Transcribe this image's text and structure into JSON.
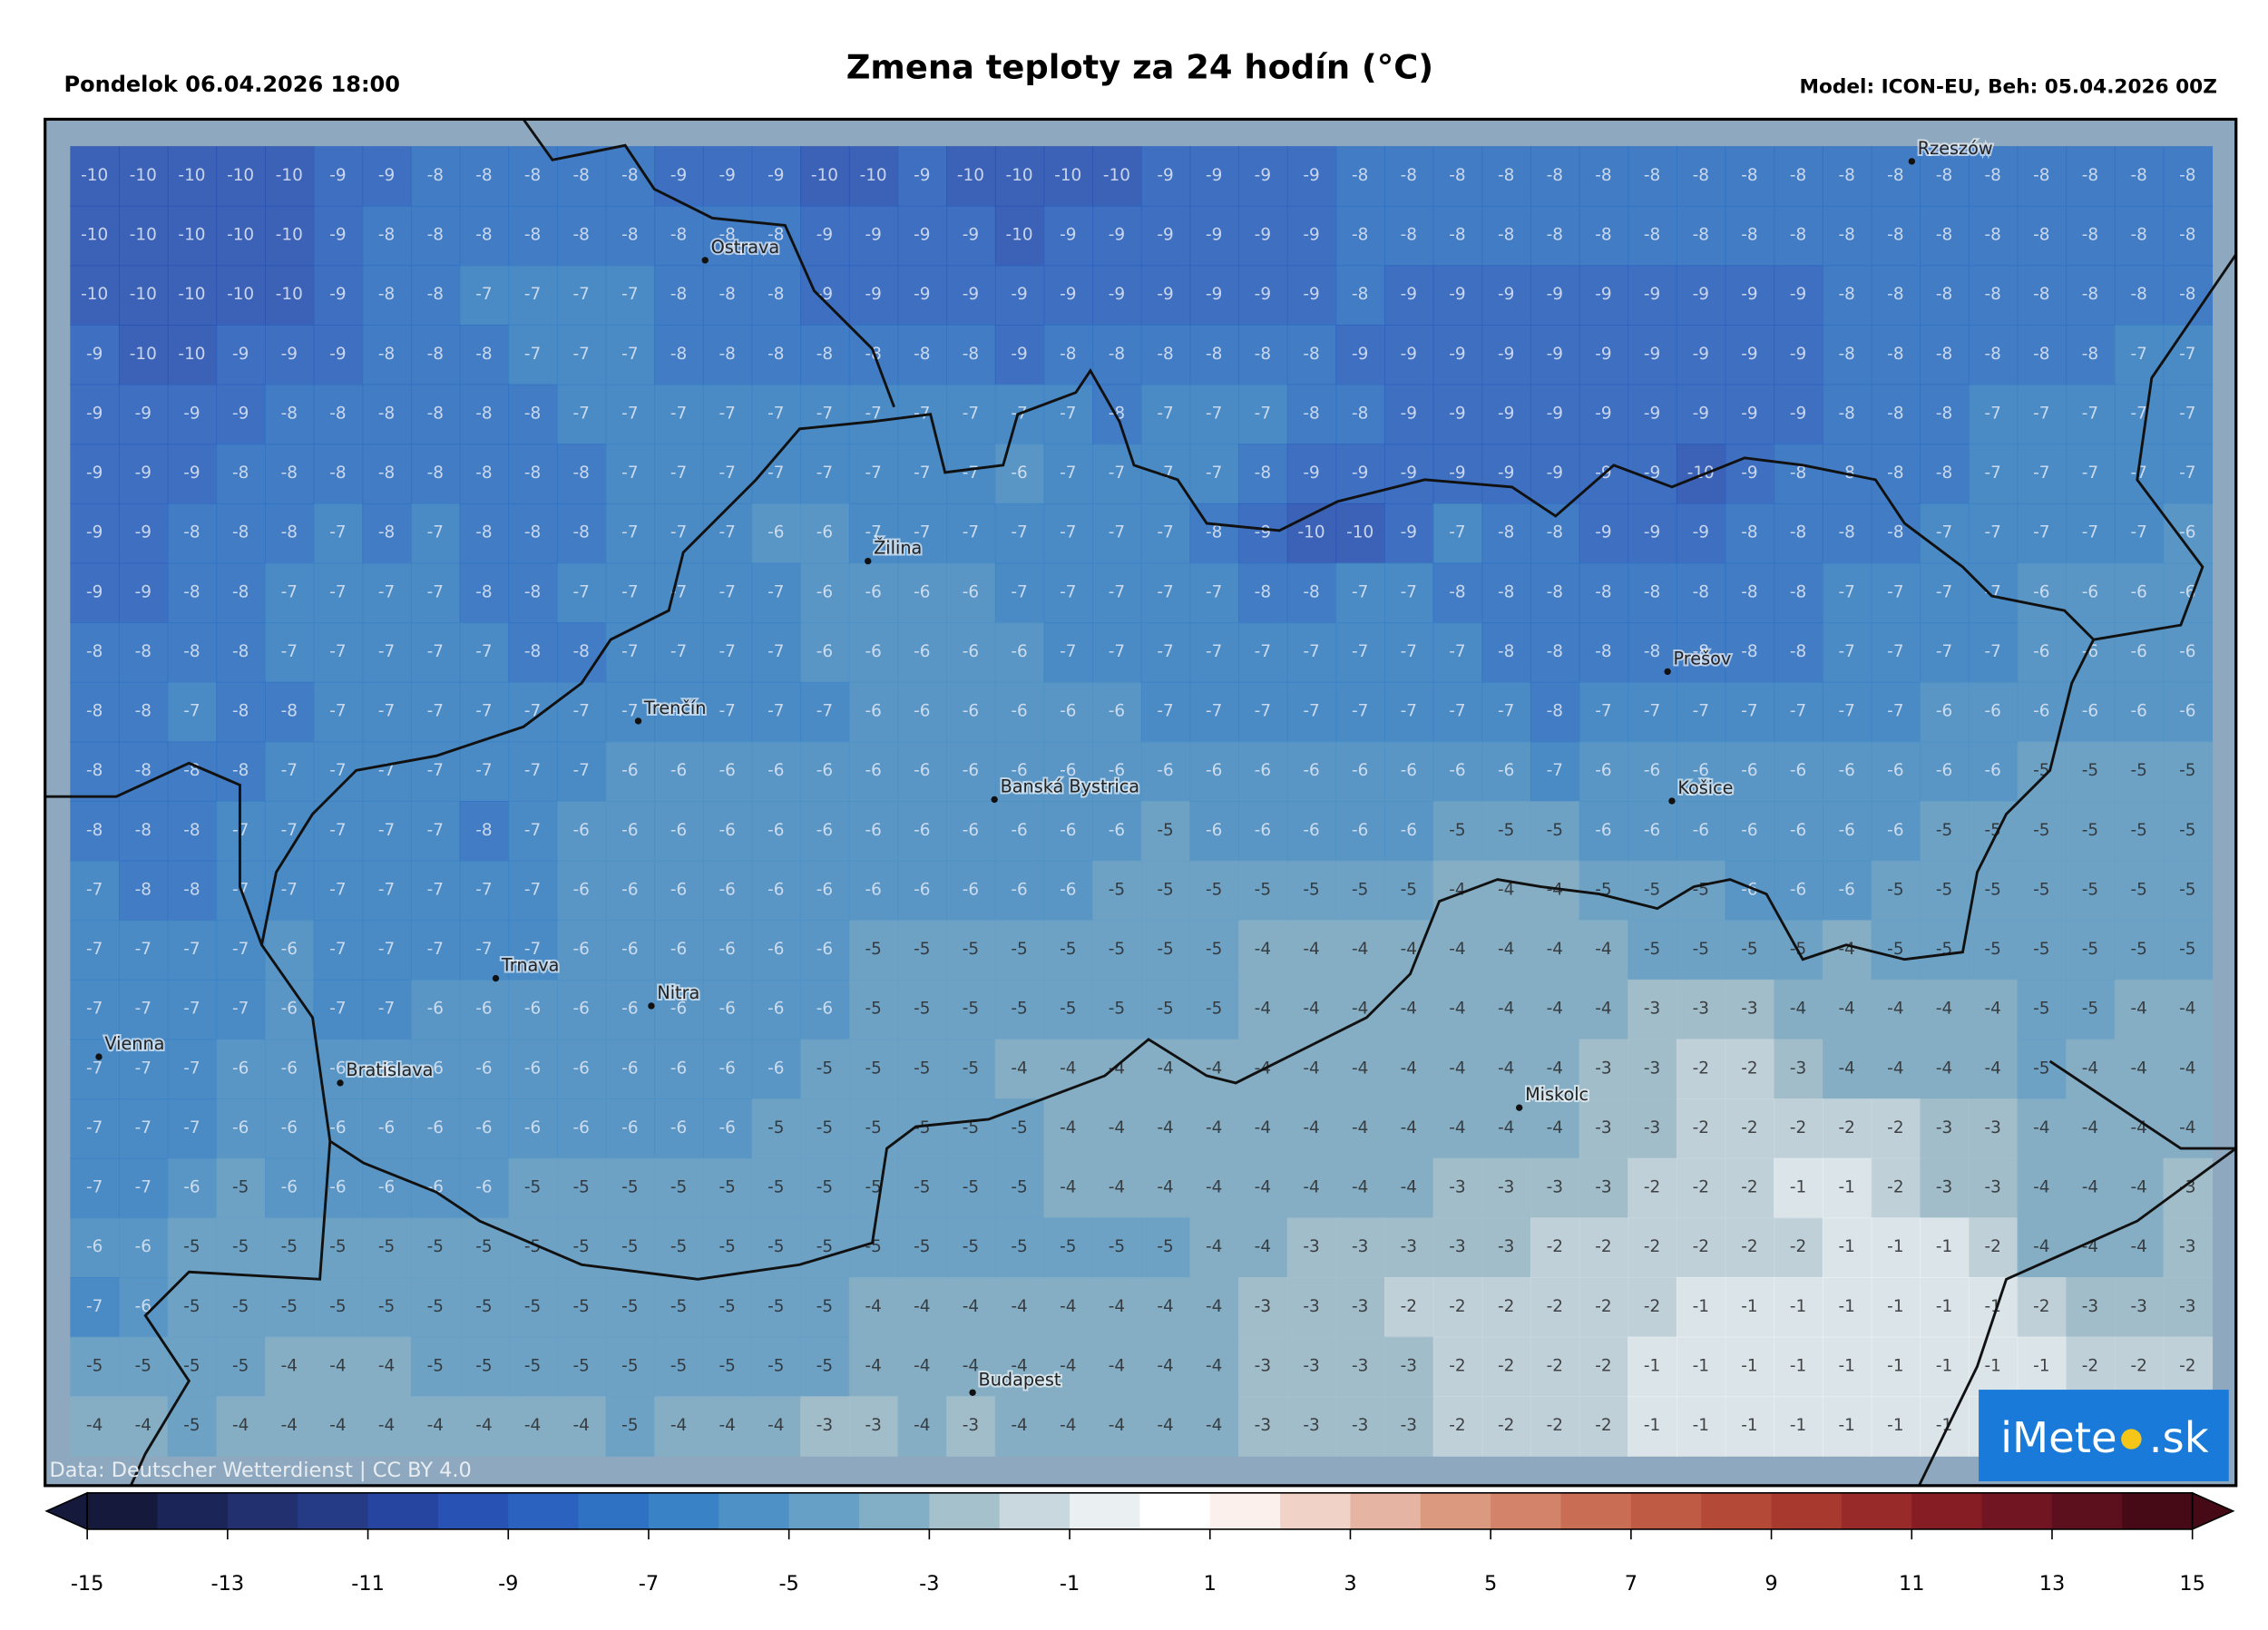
{
  "header": {
    "left": "Pondelok 06.04.2026 18:00",
    "title": "Zmena teploty za 24 hodín (°C)",
    "right": "Model: ICON-EU, Beh: 05.04.2026 00Z"
  },
  "map": {
    "cities": [
      "Rzeszów",
      "Ostrava",
      "Žilina",
      "Prešov",
      "Trenčín",
      "Košice",
      "Banská Bystrica",
      "Trnava",
      "Nitra",
      "Vienna",
      "Bratislava",
      "Miskolc",
      "Budapest"
    ],
    "grid": [
      [
        -10,
        -10,
        -10,
        -10,
        -10,
        -9,
        -9,
        -8,
        -8,
        -8,
        -8,
        -8,
        -9,
        -9,
        -9,
        -10,
        -10,
        -9,
        -10,
        -10,
        -10,
        -10,
        -9,
        -9,
        -9,
        -9,
        -8,
        -8,
        -8,
        -8,
        -8,
        -8,
        -8,
        -8,
        -8,
        -8,
        -8,
        -8,
        -8,
        -8,
        -8,
        -8,
        -8,
        -8
      ],
      [
        -10,
        -10,
        -10,
        -10,
        -10,
        -9,
        -8,
        -8,
        -8,
        -8,
        -8,
        -8,
        -8,
        -8,
        -8,
        -9,
        -9,
        -9,
        -9,
        -10,
        -9,
        -9,
        -9,
        -9,
        -9,
        -9,
        -8,
        -8,
        -8,
        -8,
        -8,
        -8,
        -8,
        -8,
        -8,
        -8,
        -8,
        -8,
        -8,
        -8,
        -8,
        -8,
        -8,
        -8
      ],
      [
        -10,
        -10,
        -10,
        -10,
        -10,
        -9,
        -8,
        -8,
        -7,
        -7,
        -7,
        -7,
        -8,
        -8,
        -8,
        -9,
        -9,
        -9,
        -9,
        -9,
        -9,
        -9,
        -9,
        -9,
        -9,
        -9,
        -8,
        -9,
        -9,
        -9,
        -9,
        -9,
        -9,
        -9,
        -9,
        -9,
        -8,
        -8,
        -8,
        -8,
        -8,
        -8,
        -8,
        -8
      ],
      [
        -9,
        -10,
        -10,
        -9,
        -9,
        -9,
        -8,
        -8,
        -8,
        -7,
        -7,
        -7,
        -8,
        -8,
        -8,
        -8,
        -8,
        -8,
        -8,
        -9,
        -8,
        -8,
        -8,
        -8,
        -8,
        -8,
        -9,
        -9,
        -9,
        -9,
        -9,
        -9,
        -9,
        -9,
        -9,
        -9,
        -8,
        -8,
        -8,
        -8,
        -8,
        -8,
        -7,
        -7
      ],
      [
        -9,
        -9,
        -9,
        -9,
        -8,
        -8,
        -8,
        -8,
        -8,
        -8,
        -7,
        -7,
        -7,
        -7,
        -7,
        -7,
        -7,
        -7,
        -7,
        -7,
        -7,
        -8,
        -7,
        -7,
        -7,
        -8,
        -8,
        -9,
        -9,
        -9,
        -9,
        -9,
        -9,
        -9,
        -9,
        -9,
        -8,
        -8,
        -8,
        -7,
        -7,
        -7,
        -7,
        -7
      ],
      [
        -9,
        -9,
        -9,
        -8,
        -8,
        -8,
        -8,
        -8,
        -8,
        -8,
        -8,
        -7,
        -7,
        -7,
        -7,
        -7,
        -7,
        -7,
        -7,
        -6,
        -7,
        -7,
        -7,
        -7,
        -8,
        -9,
        -9,
        -9,
        -9,
        -9,
        -9,
        -9,
        -9,
        -10,
        -9,
        -8,
        -8,
        -8,
        -8,
        -7,
        -7,
        -7,
        -7,
        -7
      ],
      [
        -9,
        -9,
        -8,
        -8,
        -8,
        -7,
        -8,
        -7,
        -8,
        -8,
        -8,
        -7,
        -7,
        -7,
        -6,
        -6,
        -7,
        -7,
        -7,
        -7,
        -7,
        -7,
        -7,
        -8,
        -9,
        -10,
        -10,
        -9,
        -7,
        -8,
        -8,
        -9,
        -9,
        -9,
        -8,
        -8,
        -8,
        -8,
        -7,
        -7,
        -7,
        -7,
        -7,
        -6
      ],
      [
        -9,
        -9,
        -8,
        -8,
        -7,
        -7,
        -7,
        -7,
        -8,
        -8,
        -7,
        -7,
        -7,
        -7,
        -7,
        -6,
        -6,
        -6,
        -6,
        -7,
        -7,
        -7,
        -7,
        -7,
        -8,
        -8,
        -7,
        -7,
        -8,
        -8,
        -8,
        -8,
        -8,
        -8,
        -8,
        -8,
        -7,
        -7,
        -7,
        -7,
        -6,
        -6,
        -6,
        -6
      ],
      [
        -8,
        -8,
        -8,
        -8,
        -7,
        -7,
        -7,
        -7,
        -7,
        -8,
        -8,
        -7,
        -7,
        -7,
        -7,
        -6,
        -6,
        -6,
        -6,
        -6,
        -7,
        -7,
        -7,
        -7,
        -7,
        -7,
        -7,
        -7,
        -7,
        -8,
        -8,
        -8,
        -8,
        -8,
        -8,
        -8,
        -7,
        -7,
        -7,
        -7,
        -6,
        -6,
        -6,
        -6
      ],
      [
        -8,
        -8,
        -7,
        -8,
        -8,
        -7,
        -7,
        -7,
        -7,
        -7,
        -7,
        -7,
        -7,
        -7,
        -7,
        -7,
        -6,
        -6,
        -6,
        -6,
        -6,
        -6,
        -7,
        -7,
        -7,
        -7,
        -7,
        -7,
        -7,
        -7,
        -8,
        -7,
        -7,
        -7,
        -7,
        -7,
        -7,
        -7,
        -6,
        -6,
        -6,
        -6,
        -6,
        -6
      ],
      [
        -8,
        -8,
        -8,
        -8,
        -7,
        -7,
        -7,
        -7,
        -7,
        -7,
        -7,
        -6,
        -6,
        -6,
        -6,
        -6,
        -6,
        -6,
        -6,
        -6,
        -6,
        -6,
        -6,
        -6,
        -6,
        -6,
        -6,
        -6,
        -6,
        -6,
        -7,
        -6,
        -6,
        -6,
        -6,
        -6,
        -6,
        -6,
        -6,
        -6,
        -5,
        -5,
        -5,
        -5
      ],
      [
        -8,
        -8,
        -8,
        -7,
        -7,
        -7,
        -7,
        -7,
        -8,
        -7,
        -6,
        -6,
        -6,
        -6,
        -6,
        -6,
        -6,
        -6,
        -6,
        -6,
        -6,
        -6,
        -5,
        -6,
        -6,
        -6,
        -6,
        -6,
        -5,
        -5,
        -5,
        -6,
        -6,
        -6,
        -6,
        -6,
        -6,
        -6,
        -5,
        -5,
        -5,
        -5,
        -5,
        -5
      ],
      [
        -7,
        -8,
        -8,
        -7,
        -7,
        -7,
        -7,
        -7,
        -7,
        -7,
        -6,
        -6,
        -6,
        -6,
        -6,
        -6,
        -6,
        -6,
        -6,
        -6,
        -6,
        -5,
        -5,
        -5,
        -5,
        -5,
        -5,
        -5,
        -4,
        -4,
        -4,
        -5,
        -5,
        -5,
        -6,
        -6,
        -6,
        -5,
        -5,
        -5,
        -5,
        -5,
        -5,
        -5
      ],
      [
        -7,
        -7,
        -7,
        -7,
        -6,
        -7,
        -7,
        -7,
        -7,
        -7,
        -6,
        -6,
        -6,
        -6,
        -6,
        -6,
        -5,
        -5,
        -5,
        -5,
        -5,
        -5,
        -5,
        -5,
        -4,
        -4,
        -4,
        -4,
        -4,
        -4,
        -4,
        -4,
        -5,
        -5,
        -5,
        -5,
        -4,
        -5,
        -5,
        -5,
        -5,
        -5,
        -5,
        -5
      ],
      [
        -7,
        -7,
        -7,
        -7,
        -6,
        -7,
        -7,
        -6,
        -6,
        -6,
        -6,
        -6,
        -6,
        -6,
        -6,
        -6,
        -5,
        -5,
        -5,
        -5,
        -5,
        -5,
        -5,
        -5,
        -4,
        -4,
        -4,
        -4,
        -4,
        -4,
        -4,
        -4,
        -3,
        -3,
        -3,
        -4,
        -4,
        -4,
        -4,
        -4,
        -5,
        -5,
        -4,
        -4
      ],
      [
        -7,
        -7,
        -7,
        -6,
        -6,
        -6,
        -6,
        -6,
        -6,
        -6,
        -6,
        -6,
        -6,
        -6,
        -6,
        -5,
        -5,
        -5,
        -5,
        -4,
        -4,
        -4,
        -4,
        -4,
        -4,
        -4,
        -4,
        -4,
        -4,
        -4,
        -4,
        -3,
        -3,
        -2,
        -2,
        -3,
        -4,
        -4,
        -4,
        -4,
        -5,
        -4,
        -4,
        -4
      ],
      [
        -7,
        -7,
        -7,
        -6,
        -6,
        -6,
        -6,
        -6,
        -6,
        -6,
        -6,
        -6,
        -6,
        -6,
        -5,
        -5,
        -5,
        -5,
        -5,
        -5,
        -4,
        -4,
        -4,
        -4,
        -4,
        -4,
        -4,
        -4,
        -4,
        -4,
        -4,
        -3,
        -3,
        -2,
        -2,
        -2,
        -2,
        -2,
        -3,
        -3,
        -4,
        -4,
        -4,
        -4
      ],
      [
        -7,
        -7,
        -6,
        -5,
        -6,
        -6,
        -6,
        -6,
        -6,
        -5,
        -5,
        -5,
        -5,
        -5,
        -5,
        -5,
        -5,
        -5,
        -5,
        -5,
        -4,
        -4,
        -4,
        -4,
        -4,
        -4,
        -4,
        -4,
        -3,
        -3,
        -3,
        -3,
        -2,
        -2,
        -2,
        -1,
        -1,
        -2,
        -3,
        -3,
        -4,
        -4,
        -4,
        -3
      ],
      [
        -6,
        -6,
        -5,
        -5,
        -5,
        -5,
        -5,
        -5,
        -5,
        -5,
        -5,
        -5,
        -5,
        -5,
        -5,
        -5,
        -5,
        -5,
        -5,
        -5,
        -5,
        -5,
        -5,
        -4,
        -4,
        -3,
        -3,
        -3,
        -3,
        -3,
        -2,
        -2,
        -2,
        -2,
        -2,
        -2,
        -1,
        -1,
        -1,
        -2,
        -4,
        -4,
        -4,
        -3
      ],
      [
        -7,
        -6,
        -5,
        -5,
        -5,
        -5,
        -5,
        -5,
        -5,
        -5,
        -5,
        -5,
        -5,
        -5,
        -5,
        -5,
        -4,
        -4,
        -4,
        -4,
        -4,
        -4,
        -4,
        -4,
        -3,
        -3,
        -3,
        -2,
        -2,
        -2,
        -2,
        -2,
        -2,
        -1,
        -1,
        -1,
        -1,
        -1,
        -1,
        -1,
        -2,
        -3,
        -3,
        -3
      ],
      [
        -5,
        -5,
        -5,
        -5,
        -4,
        -4,
        -4,
        -5,
        -5,
        -5,
        -5,
        -5,
        -5,
        -5,
        -5,
        -5,
        -4,
        -4,
        -4,
        -4,
        -4,
        -4,
        -4,
        -4,
        -3,
        -3,
        -3,
        -3,
        -2,
        -2,
        -2,
        -2,
        -1,
        -1,
        -1,
        -1,
        -1,
        -1,
        -1,
        -1,
        -1,
        -2,
        -2,
        -2
      ],
      [
        -4,
        -4,
        -5,
        -4,
        -4,
        -4,
        -4,
        -4,
        -4,
        -4,
        -4,
        -5,
        -4,
        -4,
        -4,
        -3,
        -3,
        -4,
        -3,
        -4,
        -4,
        -4,
        -4,
        -4,
        -3,
        -3,
        -3,
        -3,
        -2,
        -2,
        -2,
        -2,
        -1,
        -1,
        -1,
        -1,
        -1,
        -1,
        -1,
        -1
      ]
    ],
    "credit": "Data: Deutscher Wetterdienst | CC BY 4.0"
  },
  "colorbar": {
    "min": -15,
    "max": 15,
    "ticks": [
      -15,
      -13,
      -11,
      -9,
      -7,
      -5,
      -3,
      -1,
      1,
      3,
      5,
      7,
      9,
      11,
      13,
      15
    ],
    "colors": [
      "#151a3d",
      "#1b2558",
      "#22306f",
      "#253b86",
      "#2645a0",
      "#2852b3",
      "#2c62bf",
      "#2f72c4",
      "#3a82c6",
      "#4d91c6",
      "#66a0c6",
      "#82aec6",
      "#a5c1cc",
      "#c9d8de",
      "#eaf0f2",
      "#ffffff",
      "#fbf0ec",
      "#f1d2c7",
      "#e5b4a3",
      "#db9980",
      "#d2836a",
      "#c96e55",
      "#bf5b44",
      "#b44938",
      "#a8392f",
      "#982a29",
      "#861d25",
      "#721522",
      "#5c0f1d",
      "#460a17"
    ]
  },
  "logo": {
    "left": "iMete",
    "right": ".sk"
  }
}
